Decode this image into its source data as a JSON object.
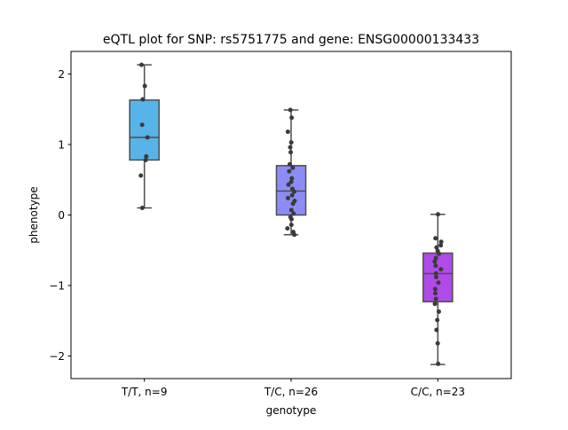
{
  "chart_data": {
    "type": "box",
    "title": "eQTL plot for SNP: rs5751775 and gene: ENSG00000133433",
    "xlabel": "genotype",
    "ylabel": "phenotype",
    "ylim": [
      -2.32,
      2.32
    ],
    "yticks": [
      2,
      1,
      0,
      -1,
      -2
    ],
    "ytick_labels": [
      "2",
      "1",
      "0",
      "−1",
      "−2"
    ],
    "grid": false,
    "categories": [
      "T/T, n=9",
      "T/C, n=26",
      "C/C, n=23"
    ],
    "colors": [
      "#56b4e9",
      "#8c8cf7",
      "#b04ae8"
    ],
    "point_color": "#3a3a3a",
    "boxes": [
      {
        "whisker_low": 0.1,
        "q1": 0.78,
        "median": 1.1,
        "q3": 1.63,
        "whisker_high": 2.13
      },
      {
        "whisker_low": -0.28,
        "q1": 0.0,
        "median": 0.34,
        "q3": 0.7,
        "whisker_high": 1.49
      },
      {
        "whisker_low": -2.12,
        "q1": -1.23,
        "median": -0.83,
        "q3": -0.54,
        "whisker_high": 0.01
      }
    ],
    "series": [
      {
        "values": [
          2.13,
          1.83,
          1.64,
          1.28,
          1.1,
          0.83,
          0.78,
          0.56,
          0.1
        ],
        "jitter": [
          -0.19,
          0.03,
          -0.11,
          -0.15,
          0.21,
          0.13,
          0.09,
          -0.24,
          -0.14
        ]
      },
      {
        "values": [
          1.49,
          1.38,
          1.18,
          1.03,
          0.96,
          0.89,
          0.72,
          0.67,
          0.62,
          0.52,
          0.47,
          0.43,
          0.37,
          0.33,
          0.28,
          0.24,
          0.2,
          0.16,
          0.07,
          0.02,
          -0.03,
          -0.06,
          -0.14,
          -0.19,
          -0.24,
          -0.28
        ],
        "jitter": [
          -0.05,
          0.04,
          -0.22,
          0.01,
          -0.06,
          -0.03,
          -0.09,
          0.11,
          -0.13,
          0.05,
          0.01,
          -0.18,
          0.09,
          0.21,
          0.07,
          -0.21,
          0.24,
          0.13,
          0.02,
          0.17,
          -0.04,
          0.03,
          0.02,
          -0.25,
          0.15,
          0.22
        ]
      },
      {
        "values": [
          0.01,
          -0.33,
          -0.38,
          -0.43,
          -0.46,
          -0.51,
          -0.55,
          -0.61,
          -0.66,
          -0.72,
          -0.77,
          -0.83,
          -0.88,
          -0.96,
          -1.05,
          -1.11,
          -1.19,
          -1.26,
          -1.37,
          -1.49,
          -1.63,
          -1.82,
          -2.11
        ],
        "jitter": [
          0.01,
          -0.16,
          0.23,
          0.2,
          -0.09,
          -0.01,
          0.08,
          -0.13,
          -0.21,
          -0.15,
          0.21,
          -0.13,
          -0.11,
          0.04,
          -0.18,
          -0.17,
          -0.13,
          -0.2,
          0.07,
          -0.04,
          -0.09,
          -0.01,
          0.02
        ]
      }
    ]
  }
}
